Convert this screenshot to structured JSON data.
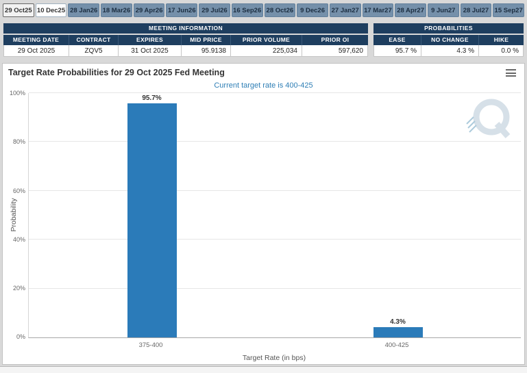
{
  "tabs": [
    {
      "label": "29 Oct25",
      "state": "selected"
    },
    {
      "label": "10 Dec25",
      "state": "light"
    },
    {
      "label": "28 Jan26",
      "state": "default"
    },
    {
      "label": "18 Mar26",
      "state": "default"
    },
    {
      "label": "29 Apr26",
      "state": "default"
    },
    {
      "label": "17 Jun26",
      "state": "default"
    },
    {
      "label": "29 Jul26",
      "state": "default"
    },
    {
      "label": "16 Sep26",
      "state": "default"
    },
    {
      "label": "28 Oct26",
      "state": "default"
    },
    {
      "label": "9 Dec26",
      "state": "default"
    },
    {
      "label": "27 Jan27",
      "state": "default"
    },
    {
      "label": "17 Mar27",
      "state": "default"
    },
    {
      "label": "28 Apr27",
      "state": "default"
    },
    {
      "label": "9 Jun27",
      "state": "default"
    },
    {
      "label": "28 Jul27",
      "state": "default"
    },
    {
      "label": "15 Sep27",
      "state": "default"
    }
  ],
  "meeting_info": {
    "title": "MEETING INFORMATION",
    "columns": [
      "MEETING DATE",
      "CONTRACT",
      "EXPIRES",
      "MID PRICE",
      "PRIOR VOLUME",
      "PRIOR OI"
    ],
    "row": [
      "29 Oct 2025",
      "ZQV5",
      "31 Oct 2025",
      "95.9138",
      "225,034",
      "597,620"
    ]
  },
  "probabilities": {
    "title": "PROBABILITIES",
    "columns": [
      "EASE",
      "NO CHANGE",
      "HIKE"
    ],
    "row": [
      "95.7 %",
      "4.3 %",
      "0.0 %"
    ]
  },
  "chart_data": {
    "type": "bar",
    "title": "Target Rate Probabilities for 29 Oct 2025 Fed Meeting",
    "subtitle": "Current target rate is 400-425",
    "categories": [
      "375-400",
      "400-425"
    ],
    "values": [
      95.7,
      4.3
    ],
    "labels": [
      "95.7%",
      "4.3%"
    ],
    "xlabel": "Target Rate (in bps)",
    "ylabel": "Probability",
    "ylim": [
      0,
      100
    ],
    "yticks": [
      "0%",
      "20%",
      "40%",
      "60%",
      "80%",
      "100%"
    ],
    "grid": true,
    "legend": "none",
    "bar_color": "#2b7bb9",
    "subtitle_color": "#2e7eb5",
    "watermark": "QuikStrike Q logo"
  },
  "colors": {
    "tab_default_bg": "#7590aa",
    "table_header_bg": "#1e3e5f",
    "page_bg": "#d9d9d9",
    "accent_blue": "#2b7bb9"
  }
}
